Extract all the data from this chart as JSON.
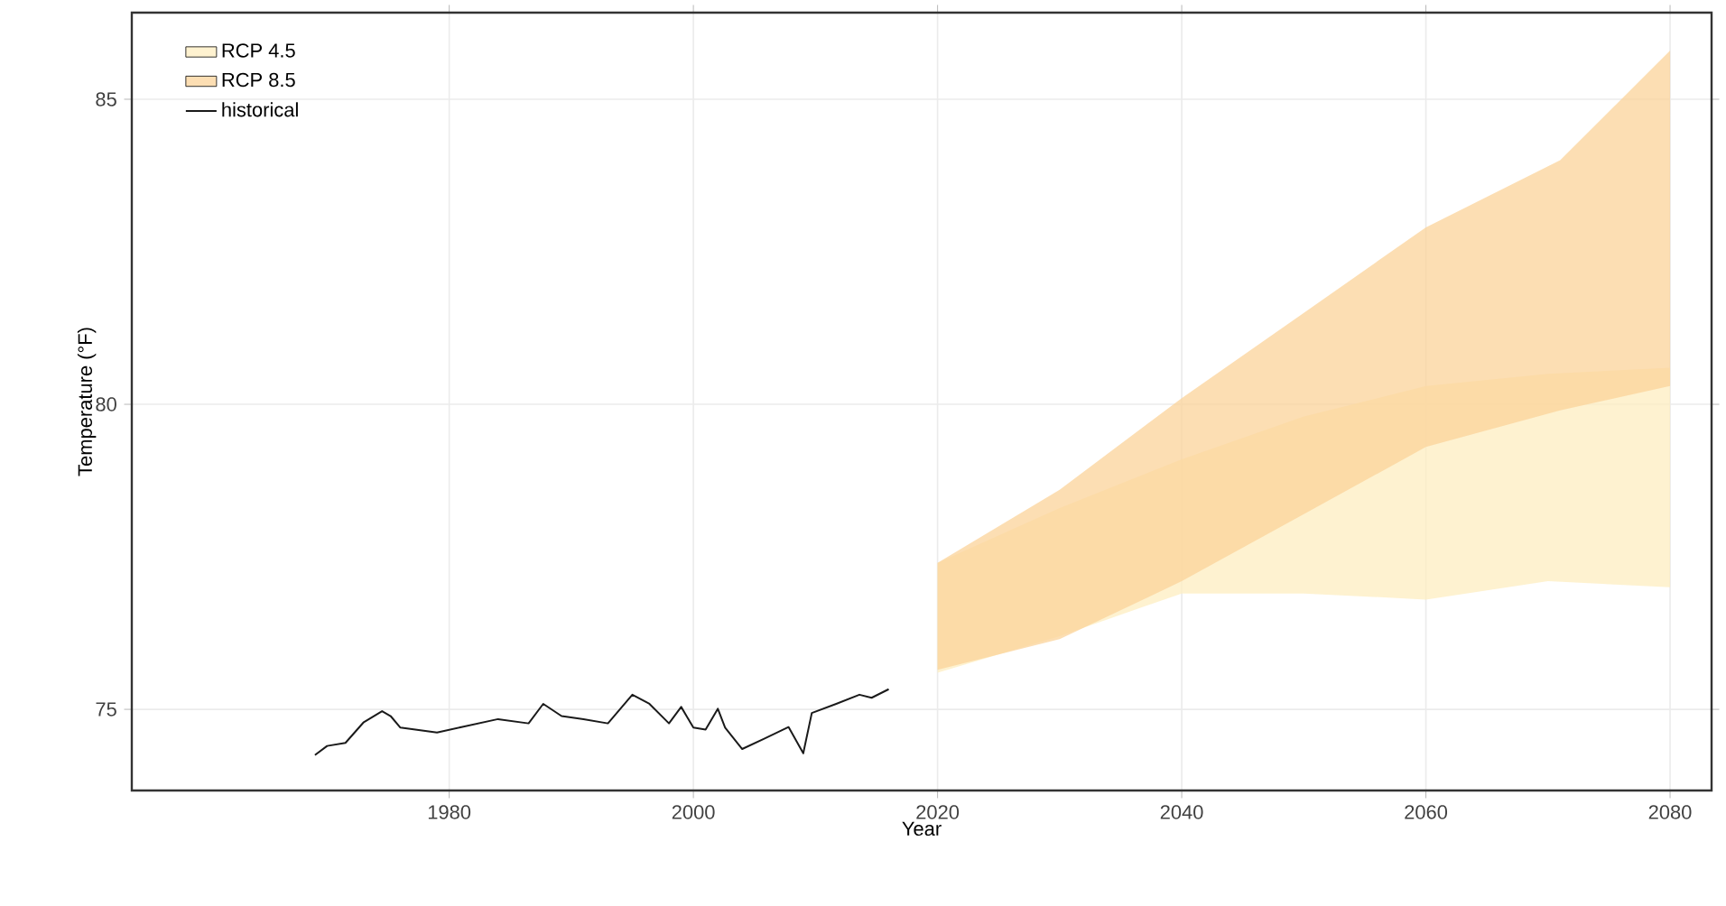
{
  "chart_data": {
    "type": "line",
    "xlabel": "Year",
    "ylabel": "Temperature (°F)",
    "xlim": [
      1954,
      2083.4
    ],
    "ylim": [
      73.67,
      86.42
    ],
    "xticks": [
      1980,
      2000,
      2020,
      2040,
      2060,
      2080
    ],
    "yticks": [
      75,
      80,
      85
    ],
    "grid": true,
    "legend": "top left",
    "marker": "none",
    "series": [
      {
        "name": "RCP 4.5",
        "type": "area",
        "color": "#fdeec0",
        "x": [
          2020,
          2030,
          2040,
          2050,
          2060,
          2070,
          2080
        ],
        "values": [
          null,
          null,
          null,
          null,
          null,
          null,
          null
        ],
        "lower": [
          75.6,
          76.2,
          76.9,
          76.9,
          76.8,
          77.1,
          77.0
        ],
        "upper": [
          77.4,
          78.3,
          79.1,
          79.8,
          80.3,
          80.5,
          80.6
        ]
      },
      {
        "name": "RCP 8.5",
        "type": "area",
        "color": "#fbd39a",
        "x": [
          2020,
          2030,
          2040,
          2050,
          2060,
          2071,
          2080
        ],
        "values": [
          null,
          null,
          null,
          null,
          null,
          null,
          null
        ],
        "lower": [
          75.65,
          76.15,
          77.1,
          78.2,
          79.3,
          79.9,
          80.3
        ],
        "upper": [
          77.4,
          78.6,
          80.1,
          81.5,
          82.9,
          84.0,
          85.8
        ]
      },
      {
        "name": "historical",
        "color": "#1a1a1a",
        "x": [
          1969,
          1970,
          1971.5,
          1973,
          1974.5,
          1975.2,
          1976,
          1979,
          1981,
          1984,
          1986.5,
          1987.7,
          1989.2,
          1991,
          1993,
          1995,
          1996.4,
          1998,
          1999,
          2000,
          2001,
          2002,
          2002.6,
          2004,
          2005.8,
          2007.8,
          2009,
          2009.7,
          2011.7,
          2013.6,
          2014.6,
          2016
        ],
        "values": [
          74.25,
          74.4,
          74.45,
          74.79,
          74.97,
          74.89,
          74.7,
          74.62,
          74.71,
          74.84,
          74.77,
          75.09,
          74.89,
          74.84,
          74.77,
          75.24,
          75.09,
          74.77,
          75.04,
          74.7,
          74.67,
          75.01,
          74.7,
          74.35,
          74.52,
          74.71,
          74.28,
          74.94,
          75.09,
          75.24,
          75.19,
          75.33
        ]
      }
    ]
  }
}
